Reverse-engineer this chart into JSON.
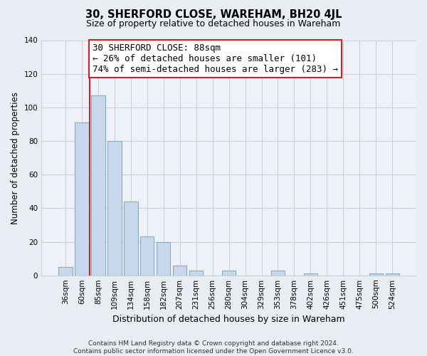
{
  "title": "30, SHERFORD CLOSE, WAREHAM, BH20 4JL",
  "subtitle": "Size of property relative to detached houses in Wareham",
  "xlabel": "Distribution of detached houses by size in Wareham",
  "ylabel": "Number of detached properties",
  "bar_labels": [
    "36sqm",
    "60sqm",
    "85sqm",
    "109sqm",
    "134sqm",
    "158sqm",
    "182sqm",
    "207sqm",
    "231sqm",
    "256sqm",
    "280sqm",
    "304sqm",
    "329sqm",
    "353sqm",
    "378sqm",
    "402sqm",
    "426sqm",
    "451sqm",
    "475sqm",
    "500sqm",
    "524sqm"
  ],
  "bar_values": [
    5,
    91,
    107,
    80,
    44,
    23,
    20,
    6,
    3,
    0,
    3,
    0,
    0,
    3,
    0,
    1,
    0,
    0,
    0,
    1,
    1
  ],
  "bar_color": "#c8d8ec",
  "bar_edge_color": "#8aaabe",
  "annotation_title": "30 SHERFORD CLOSE: 88sqm",
  "annotation_line1": "← 26% of detached houses are smaller (101)",
  "annotation_line2": "74% of semi-detached houses are larger (283) →",
  "marker_color": "#cc2222",
  "ylim": [
    0,
    140
  ],
  "yticks": [
    0,
    20,
    40,
    60,
    80,
    100,
    120,
    140
  ],
  "footer_line1": "Contains HM Land Registry data © Crown copyright and database right 2024.",
  "footer_line2": "Contains public sector information licensed under the Open Government Licence v3.0.",
  "bg_color": "#e8eef4",
  "plot_bg_color": "#eef2f8",
  "grid_color": "#c5d0dc",
  "title_fontsize": 10.5,
  "subtitle_fontsize": 9,
  "ylabel_fontsize": 8.5,
  "xlabel_fontsize": 9,
  "tick_fontsize": 7.5,
  "footer_fontsize": 6.5,
  "annot_fontsize": 9
}
